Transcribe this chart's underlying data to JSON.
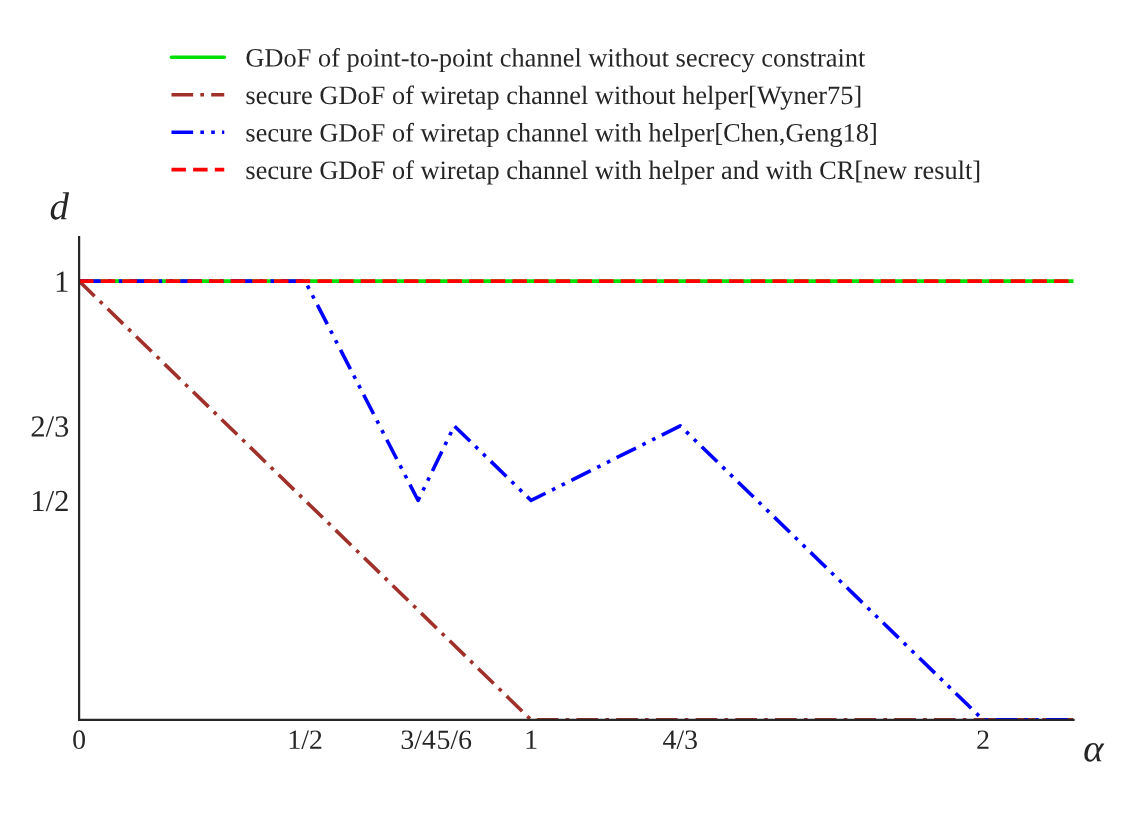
{
  "chart_data": {
    "type": "line",
    "xlabel": "α",
    "ylabel": "d",
    "xlim": [
      0,
      2.2
    ],
    "ylim": [
      0,
      1.1
    ],
    "xticks": [
      0,
      {
        "value": 0.5,
        "label": "1/2"
      },
      {
        "value": 0.75,
        "label": "3/4"
      },
      {
        "value": 0.83,
        "label": "5/6"
      },
      1,
      {
        "value": 1.33,
        "label": "4/3"
      },
      2
    ],
    "yticks": [
      {
        "value": 0.5,
        "label": "1/2"
      },
      {
        "value": 0.67,
        "label": "2/3"
      },
      1
    ],
    "legend": "top",
    "grid": false,
    "series": [
      {
        "name": "GDoF of point-to-point channel without secrecy constraint",
        "color": "#00e000",
        "line_style": "solid",
        "x": [
          0,
          2.2
        ],
        "values": [
          1,
          1
        ]
      },
      {
        "name": "secure GDoF of wiretap channel without helper[Wyner75]",
        "color": "#a0302a",
        "line_style": "dashdot",
        "x": [
          0,
          1,
          2.2
        ],
        "values": [
          1,
          0,
          0
        ]
      },
      {
        "name": "secure GDoF of wiretap channel with helper[Chen,Geng18]",
        "color": "#0000ff",
        "line_style": "dashdotdot",
        "x": [
          0,
          0.5,
          0.75,
          0.83,
          1,
          1.33,
          2,
          2.2
        ],
        "values": [
          1,
          1,
          0.5,
          0.67,
          0.5,
          0.67,
          0,
          0
        ]
      },
      {
        "name": "secure GDoF of wiretap channel with helper and with CR[new result]",
        "color": "#ff0000",
        "line_style": "dashed",
        "x": [
          0,
          2.2
        ],
        "values": [
          1,
          1
        ]
      }
    ]
  }
}
